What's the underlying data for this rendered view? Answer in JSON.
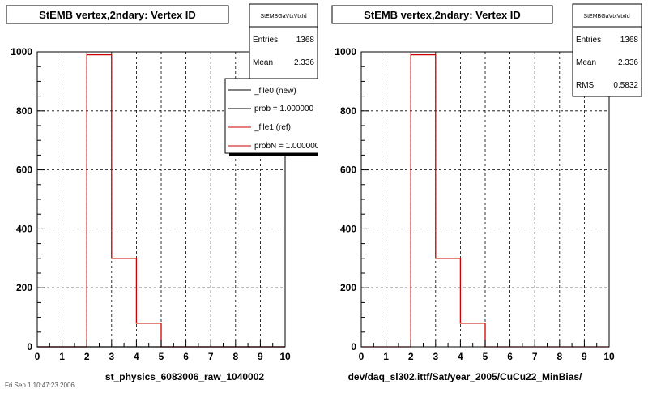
{
  "chart_data": [
    {
      "type": "histogram",
      "title": "StEMB  vertex,2ndary: Vertex ID",
      "xlabel": "st_physics_6083006_raw_1040002",
      "ylabel": "",
      "xlim": [
        0,
        10
      ],
      "ylim": [
        0,
        1000
      ],
      "x_ticks": [
        "0",
        "1",
        "2",
        "3",
        "4",
        "5",
        "6",
        "7",
        "8",
        "9",
        "10"
      ],
      "y_ticks": [
        "0",
        "200",
        "400",
        "600",
        "800",
        "1000"
      ],
      "grid": true,
      "bins": [
        0,
        1,
        2,
        3,
        4,
        5,
        6,
        7,
        8,
        9,
        10
      ],
      "series": [
        {
          "name": "_file0 (new)",
          "color": "#000000",
          "values": [
            0,
            0,
            0,
            0,
            0,
            0,
            0,
            0,
            0,
            0
          ]
        },
        {
          "name": "_file1 (ref)",
          "color": "#cc0000",
          "values": [
            0,
            0,
            990,
            300,
            80,
            0,
            0,
            0,
            0,
            0
          ]
        }
      ],
      "stats": {
        "name": "StEMBGaVtxVtxId",
        "entries_label": "Entries",
        "entries": "1368",
        "mean_label": "Mean",
        "mean": "2.336"
      },
      "legend": {
        "position": "top-right",
        "entries": [
          {
            "text": "_file0 (new)",
            "color": "#000000"
          },
          {
            "text": "prob = 1.000000",
            "color": "#000000"
          },
          {
            "text": "_file1 (ref)",
            "color": "#cc0000"
          },
          {
            "text": "probN = 1.000000",
            "color": "#cc0000"
          }
        ]
      }
    },
    {
      "type": "histogram",
      "title": "StEMB  vertex,2ndary: Vertex ID",
      "xlabel": "dev/daq_sl302.ittf/Sat/year_2005/CuCu22_MinBias/",
      "ylabel": "",
      "xlim": [
        0,
        10
      ],
      "ylim": [
        0,
        1000
      ],
      "x_ticks": [
        "0",
        "1",
        "2",
        "3",
        "4",
        "5",
        "6",
        "7",
        "8",
        "9",
        "10"
      ],
      "y_ticks": [
        "0",
        "200",
        "400",
        "600",
        "800",
        "1000"
      ],
      "grid": true,
      "bins": [
        0,
        1,
        2,
        3,
        4,
        5,
        6,
        7,
        8,
        9,
        10
      ],
      "series": [
        {
          "name": "",
          "color": "#cc0000",
          "values": [
            0,
            0,
            990,
            300,
            80,
            0,
            0,
            0,
            0,
            0
          ]
        }
      ],
      "stats": {
        "name": "StEMBGaVtxVtxId",
        "entries_label": "Entries",
        "entries": "1368",
        "mean_label": "Mean",
        "mean": "2.336",
        "rms_label": "RMS",
        "rms": "0.5832"
      }
    }
  ],
  "footer": {
    "timestamp": "Fri Sep 1 10:47:23 2006"
  }
}
